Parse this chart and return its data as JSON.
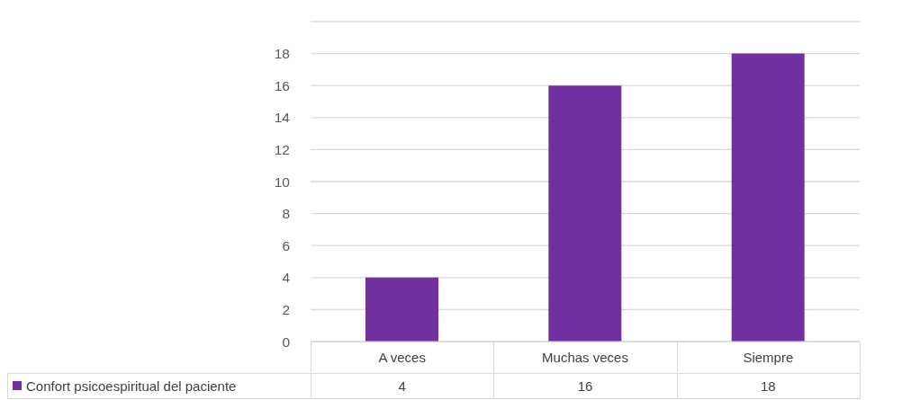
{
  "chart_data": {
    "type": "bar",
    "categories": [
      "A veces",
      "Muchas veces",
      "Siempre"
    ],
    "series": [
      {
        "name": "Confort psicoespiritual del paciente",
        "color": "#7030a0",
        "values": [
          4,
          16,
          18
        ]
      }
    ],
    "ylim": [
      0,
      20
    ],
    "yticks": [
      0,
      2,
      4,
      6,
      8,
      10,
      12,
      14,
      16,
      18,
      {
        "value": 20,
        "label": null
      }
    ],
    "grid": "y",
    "legend": "bottom",
    "data_labels": true
  }
}
